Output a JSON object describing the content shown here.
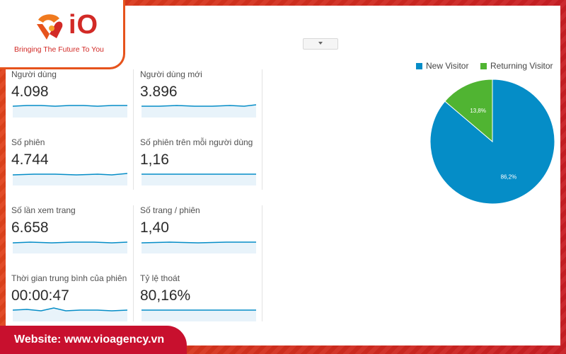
{
  "brand": {
    "logo_text": "iO",
    "tagline": "Bringing The Future To You",
    "accent": "#d22a26"
  },
  "footer": {
    "website_label": "Website: www.vioagency.vn"
  },
  "metrics": [
    {
      "label": "Người dùng",
      "value": "4.098"
    },
    {
      "label": "Người dùng mới",
      "value": "3.896"
    },
    {
      "label": "Số phiên",
      "value": "4.744"
    },
    {
      "label": "Số phiên trên mỗi người dùng",
      "value": "1,16"
    },
    {
      "label": "Số lần xem trang",
      "value": "6.658"
    },
    {
      "label": "Số trang / phiên",
      "value": "1,40"
    },
    {
      "label": "Thời gian trung bình của phiên",
      "value": "00:00:47"
    },
    {
      "label": "Tỷ lệ thoát",
      "value": "80,16%"
    }
  ],
  "chart_data": {
    "type": "pie",
    "legend_position": "top",
    "series": [
      {
        "name": "New Visitor",
        "value": 86.2,
        "label": "86,2%",
        "color": "#058dc7"
      },
      {
        "name": "Returning Visitor",
        "value": 13.8,
        "label": "13,8%",
        "color": "#50b432"
      }
    ]
  }
}
